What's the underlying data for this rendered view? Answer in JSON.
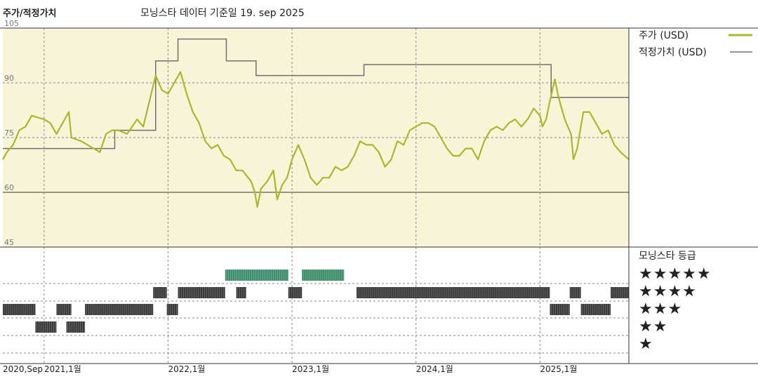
{
  "header": {
    "left_title": "주가/적정가치",
    "subtitle": "모닝스타 데이터 기준일 19. sep 2025"
  },
  "legend": {
    "price_label": "주가 (USD)",
    "fair_label": "적정가치 (USD)",
    "rating_title": "모닝스타 등급",
    "star_rows": [
      "★★★★★",
      "★★★★",
      "★★★",
      "★★",
      "★"
    ]
  },
  "colors": {
    "plot_bg": "#f8f4d8",
    "price_line": "#a9b82a",
    "fair_line": "#707070",
    "rating_dark": "#3a3a3a",
    "rating_green": "#3f8f6e",
    "grid": "#555555"
  },
  "chart_data": {
    "type": "line",
    "y_axis": {
      "ticks": [
        105,
        90,
        75,
        60,
        45
      ],
      "lim": [
        45,
        105
      ]
    },
    "x_axis": {
      "labels": [
        "2020,Sep",
        "2021,1월",
        "2022,1월",
        "2023,1월",
        "2024,1월",
        "2025,1월"
      ],
      "label_dates": [
        2020.667,
        2021.0,
        2022.0,
        2023.0,
        2024.0,
        2025.0
      ],
      "range": [
        2020.667,
        2025.717
      ]
    },
    "series": [
      {
        "name": "주가 (USD)",
        "points": [
          [
            2020.667,
            69
          ],
          [
            2020.7,
            71
          ],
          [
            2020.75,
            73
          ],
          [
            2020.8,
            77
          ],
          [
            2020.85,
            78
          ],
          [
            2020.9,
            81
          ],
          [
            2021.0,
            80
          ],
          [
            2021.05,
            79
          ],
          [
            2021.1,
            76
          ],
          [
            2021.15,
            79
          ],
          [
            2021.2,
            82
          ],
          [
            2021.22,
            75
          ],
          [
            2021.3,
            74
          ],
          [
            2021.4,
            72
          ],
          [
            2021.45,
            71
          ],
          [
            2021.5,
            76
          ],
          [
            2021.55,
            77
          ],
          [
            2021.6,
            77
          ],
          [
            2021.67,
            76
          ],
          [
            2021.75,
            80
          ],
          [
            2021.8,
            78
          ],
          [
            2021.85,
            85
          ],
          [
            2021.9,
            92
          ],
          [
            2021.95,
            88
          ],
          [
            2022.0,
            87
          ],
          [
            2022.05,
            90
          ],
          [
            2022.1,
            93
          ],
          [
            2022.15,
            87
          ],
          [
            2022.2,
            82
          ],
          [
            2022.25,
            79
          ],
          [
            2022.3,
            74
          ],
          [
            2022.35,
            72
          ],
          [
            2022.4,
            73
          ],
          [
            2022.45,
            70
          ],
          [
            2022.5,
            69
          ],
          [
            2022.55,
            66
          ],
          [
            2022.6,
            66
          ],
          [
            2022.67,
            63
          ],
          [
            2022.7,
            60
          ],
          [
            2022.72,
            56
          ],
          [
            2022.75,
            61
          ],
          [
            2022.8,
            63
          ],
          [
            2022.85,
            66
          ],
          [
            2022.88,
            58
          ],
          [
            2022.92,
            62
          ],
          [
            2022.96,
            64
          ],
          [
            2023.0,
            69
          ],
          [
            2023.05,
            73
          ],
          [
            2023.1,
            69
          ],
          [
            2023.15,
            64
          ],
          [
            2023.2,
            62
          ],
          [
            2023.25,
            64
          ],
          [
            2023.3,
            64
          ],
          [
            2023.35,
            67
          ],
          [
            2023.4,
            66
          ],
          [
            2023.45,
            67
          ],
          [
            2023.5,
            70
          ],
          [
            2023.55,
            74
          ],
          [
            2023.6,
            73
          ],
          [
            2023.65,
            73
          ],
          [
            2023.7,
            71
          ],
          [
            2023.75,
            67
          ],
          [
            2023.8,
            69
          ],
          [
            2023.85,
            74
          ],
          [
            2023.9,
            73
          ],
          [
            2023.95,
            77
          ],
          [
            2024.0,
            78
          ],
          [
            2024.05,
            79
          ],
          [
            2024.1,
            79
          ],
          [
            2024.15,
            78
          ],
          [
            2024.2,
            75
          ],
          [
            2024.25,
            72
          ],
          [
            2024.3,
            70
          ],
          [
            2024.35,
            70
          ],
          [
            2024.4,
            72
          ],
          [
            2024.45,
            72
          ],
          [
            2024.5,
            69
          ],
          [
            2024.55,
            74
          ],
          [
            2024.6,
            77
          ],
          [
            2024.65,
            78
          ],
          [
            2024.7,
            77
          ],
          [
            2024.75,
            79
          ],
          [
            2024.8,
            80
          ],
          [
            2024.85,
            78
          ],
          [
            2024.9,
            80
          ],
          [
            2024.95,
            83
          ],
          [
            2025.0,
            81
          ],
          [
            2025.02,
            78
          ],
          [
            2025.05,
            80
          ],
          [
            2025.08,
            85
          ],
          [
            2025.12,
            91
          ],
          [
            2025.15,
            86
          ],
          [
            2025.2,
            80
          ],
          [
            2025.25,
            76
          ],
          [
            2025.27,
            69
          ],
          [
            2025.3,
            72
          ],
          [
            2025.33,
            78
          ],
          [
            2025.35,
            82
          ],
          [
            2025.4,
            82
          ],
          [
            2025.45,
            79
          ],
          [
            2025.5,
            76
          ],
          [
            2025.55,
            77
          ],
          [
            2025.6,
            73
          ],
          [
            2025.65,
            71
          ],
          [
            2025.717,
            69
          ]
        ]
      },
      {
        "name": "적정가치 (USD)",
        "steps": [
          [
            2020.667,
            72
          ],
          [
            2021.57,
            77
          ],
          [
            2021.9,
            96
          ],
          [
            2022.08,
            102
          ],
          [
            2022.47,
            96
          ],
          [
            2022.71,
            92
          ],
          [
            2023.58,
            95
          ],
          [
            2025.09,
            86
          ],
          [
            2025.717,
            86
          ]
        ]
      }
    ],
    "ratings": {
      "title": "모닝스타 등급",
      "segments": [
        [
          2020.667,
          2020.93,
          3
        ],
        [
          2020.93,
          2021.1,
          2
        ],
        [
          2021.1,
          2021.22,
          3
        ],
        [
          2021.18,
          2021.33,
          2
        ],
        [
          2021.33,
          2021.88,
          3
        ],
        [
          2021.88,
          2021.99,
          4
        ],
        [
          2021.99,
          2022.08,
          3
        ],
        [
          2022.08,
          2022.46,
          4
        ],
        [
          2022.46,
          2022.72,
          5
        ],
        [
          2022.55,
          2022.63,
          4
        ],
        [
          2022.72,
          2022.97,
          5
        ],
        [
          2022.97,
          2023.08,
          4
        ],
        [
          2023.08,
          2023.42,
          5
        ],
        [
          2023.52,
          2025.08,
          4
        ],
        [
          2025.08,
          2025.24,
          3
        ],
        [
          2025.24,
          2025.33,
          4
        ],
        [
          2025.33,
          2025.57,
          3
        ],
        [
          2025.57,
          2025.717,
          4
        ]
      ]
    }
  }
}
